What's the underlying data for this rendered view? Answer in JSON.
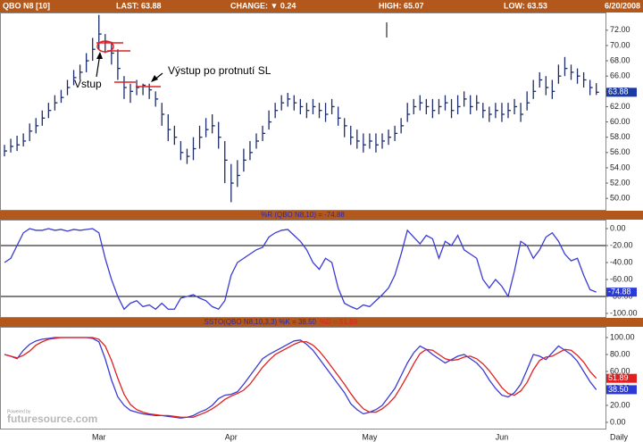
{
  "header": {
    "symbol": "QBO N8 [10]",
    "last": "LAST: 63.88",
    "change": "CHANGE: ▼ 0.24",
    "high": "HIGH: 65.07",
    "low": "LOW: 63.53",
    "date": "6/20/2008"
  },
  "watermark": {
    "small": "Powered by",
    "brand": "futuresource.com"
  },
  "chart_data": [
    {
      "type": "ohlc",
      "color": "#1c2c6c",
      "annotations": [
        "Vstup",
        "Výstup po protnutí SL"
      ],
      "high": [
        57.0,
        57.8,
        58.2,
        58.5,
        59.8,
        60.5,
        61.5,
        62.5,
        63.5,
        64.2,
        65.5,
        66.8,
        67.5,
        69.0,
        71.0,
        74.0,
        71.5,
        70.5,
        69.5,
        66.0,
        65.0,
        65.5,
        65.0,
        65.0,
        64.0,
        62.5,
        61.0,
        59.5,
        57.5,
        56.5,
        58.0,
        59.5,
        60.5,
        61.0,
        60.0,
        57.5,
        54.5,
        55.0,
        56.5,
        57.5,
        58.5,
        59.5,
        61.5,
        62.5,
        63.5,
        63.8,
        63.5,
        63.0,
        62.5,
        63.0,
        62.5,
        62.5,
        63.0,
        62.0,
        60.5,
        59.5,
        59.0,
        58.5,
        58.5,
        58.5,
        58.5,
        59.0,
        59.5,
        60.5,
        62.5,
        63.0,
        63.5,
        63.0,
        63.0,
        63.0,
        63.5,
        63.0,
        63.5,
        64.0,
        63.5,
        63.5,
        62.5,
        62.0,
        62.5,
        62.5,
        62.5,
        63.0,
        62.5,
        64.0,
        65.5,
        66.5,
        66.0,
        65.5,
        67.5,
        68.5,
        67.5,
        67.0,
        66.5,
        65.5,
        65.07
      ],
      "low": [
        55.5,
        56.0,
        56.2,
        56.8,
        57.5,
        58.5,
        59.5,
        60.5,
        61.5,
        62.5,
        63.5,
        64.8,
        65.5,
        66.5,
        68.0,
        69.5,
        69.0,
        67.5,
        65.5,
        63.0,
        62.5,
        63.5,
        63.5,
        63.0,
        62.0,
        59.5,
        57.5,
        57.0,
        55.0,
        54.5,
        55.0,
        56.5,
        58.0,
        58.5,
        56.5,
        52.0,
        49.5,
        51.5,
        53.5,
        55.0,
        56.5,
        57.5,
        59.0,
        60.5,
        61.5,
        62.0,
        61.5,
        61.0,
        60.5,
        61.0,
        60.5,
        60.0,
        61.0,
        59.5,
        58.0,
        57.0,
        56.5,
        56.0,
        56.5,
        56.0,
        56.5,
        57.0,
        57.5,
        58.5,
        60.0,
        61.0,
        61.5,
        61.0,
        60.5,
        61.0,
        61.5,
        60.5,
        61.0,
        62.0,
        61.0,
        61.5,
        60.5,
        60.0,
        60.5,
        60.0,
        60.5,
        61.0,
        60.0,
        61.5,
        63.0,
        64.5,
        63.5,
        63.0,
        65.0,
        66.0,
        65.5,
        65.0,
        64.5,
        63.5,
        63.53
      ],
      "close": [
        56.2,
        56.8,
        57.0,
        57.5,
        58.8,
        59.5,
        60.5,
        61.5,
        62.5,
        63.2,
        64.5,
        65.8,
        66.5,
        68.0,
        69.5,
        71.5,
        70.5,
        69.0,
        67.0,
        64.5,
        64.0,
        64.5,
        64.8,
        64.2,
        63.0,
        61.0,
        59.0,
        58.0,
        56.0,
        55.5,
        56.5,
        58.0,
        59.0,
        59.5,
        58.0,
        55.0,
        52.0,
        53.0,
        55.0,
        56.0,
        57.5,
        58.5,
        60.0,
        61.5,
        62.5,
        63.0,
        62.5,
        62.0,
        61.5,
        62.0,
        61.5,
        61.0,
        62.0,
        60.5,
        59.5,
        58.0,
        57.5,
        57.0,
        57.5,
        57.0,
        57.5,
        58.0,
        58.5,
        59.5,
        61.0,
        62.0,
        62.5,
        62.0,
        61.5,
        62.0,
        62.5,
        61.5,
        62.0,
        63.0,
        62.0,
        62.5,
        61.5,
        61.0,
        61.5,
        61.0,
        61.5,
        62.0,
        61.0,
        62.5,
        64.0,
        65.5,
        64.5,
        64.0,
        66.0,
        67.0,
        66.5,
        66.0,
        65.5,
        64.5,
        63.88
      ],
      "last_label": "63.88",
      "ylim": [
        48.5,
        74.2
      ],
      "yticks": [
        {
          "value": 50,
          "label": "50.00"
        },
        {
          "value": 52,
          "label": "52.00"
        },
        {
          "value": 54,
          "label": "54.00"
        },
        {
          "value": 56,
          "label": "56.00"
        },
        {
          "value": 58,
          "label": "58.00"
        },
        {
          "value": 60,
          "label": "60.00"
        },
        {
          "value": 62,
          "label": "62.00"
        },
        {
          "value": 64,
          "label": "64.00"
        },
        {
          "value": 66,
          "label": "66.00"
        },
        {
          "value": 68,
          "label": "68.00"
        },
        {
          "value": 70,
          "label": "70.00"
        },
        {
          "value": 72,
          "label": "72.00"
        }
      ]
    },
    {
      "type": "line",
      "title": "%R (QBO N8,10) = -74.88",
      "series": [
        {
          "color": "#3a3ad6",
          "values": [
            -40,
            -35,
            -20,
            -5,
            0,
            -2,
            -2,
            0,
            -2,
            -1,
            -3,
            -1,
            -2,
            -1,
            0,
            -5,
            -35,
            -60,
            -80,
            -95,
            -88,
            -85,
            -92,
            -90,
            -95,
            -88,
            -95,
            -95,
            -82,
            -80,
            -78,
            -82,
            -85,
            -92,
            -95,
            -85,
            -55,
            -40,
            -35,
            -30,
            -25,
            -22,
            -10,
            -5,
            -2,
            -1,
            -8,
            -15,
            -25,
            -40,
            -48,
            -35,
            -40,
            -70,
            -88,
            -92,
            -95,
            -90,
            -92,
            -85,
            -78,
            -70,
            -55,
            -30,
            -2,
            -10,
            -18,
            -8,
            -12,
            -35,
            -15,
            -20,
            -8,
            -25,
            -30,
            -35,
            -60,
            -70,
            -60,
            -68,
            -80,
            -50,
            -15,
            -20,
            -35,
            -25,
            -10,
            -5,
            -15,
            -30,
            -38,
            -35,
            -55,
            -72,
            -74.88
          ],
          "last_label": "-74.88"
        }
      ],
      "reference_lines": [
        -20,
        -80
      ],
      "ylim": [
        -104.2,
        9.5
      ],
      "yticks": [
        {
          "value": 0,
          "label": "0.00"
        },
        {
          "value": -20,
          "label": "-20.00"
        },
        {
          "value": -40,
          "label": "-40.00"
        },
        {
          "value": -60,
          "label": "-60.00"
        },
        {
          "value": -80,
          "label": "-80.00"
        },
        {
          "value": -100,
          "label": "-100.00"
        }
      ]
    },
    {
      "type": "line",
      "title": "SSTO(QBO N8,10,3,3) %K = 38.50",
      "title2": "%D = 51.89",
      "categories": [
        null,
        null,
        null,
        null,
        null,
        null,
        null,
        null,
        null,
        null,
        null,
        null,
        null,
        null,
        null,
        "Mar",
        null,
        null,
        null,
        null,
        null,
        null,
        null,
        null,
        null,
        null,
        null,
        null,
        null,
        null,
        null,
        null,
        null,
        null,
        null,
        null,
        "Apr",
        null,
        null,
        null,
        null,
        null,
        null,
        null,
        null,
        null,
        null,
        null,
        null,
        null,
        null,
        null,
        null,
        null,
        null,
        null,
        null,
        null,
        "May",
        null,
        null,
        null,
        null,
        null,
        null,
        null,
        null,
        null,
        null,
        null,
        null,
        null,
        null,
        null,
        null,
        null,
        null,
        null,
        null,
        "Jun",
        null,
        null,
        null,
        null,
        null,
        null,
        null,
        null,
        null,
        null,
        null,
        null,
        null,
        null,
        null
      ],
      "x_label": "Daily",
      "series": [
        {
          "color": "#3a3ad6",
          "values": [
            80,
            78,
            75,
            85,
            92,
            96,
            98,
            99,
            100,
            100,
            100,
            100,
            100,
            100,
            99,
            95,
            75,
            50,
            30,
            20,
            14,
            12,
            10,
            9,
            8,
            8,
            7,
            6,
            5,
            6,
            8,
            12,
            15,
            20,
            28,
            32,
            33,
            36,
            45,
            55,
            65,
            75,
            80,
            84,
            88,
            92,
            96,
            97,
            92,
            85,
            75,
            65,
            55,
            45,
            35,
            22,
            15,
            10,
            12,
            15,
            20,
            30,
            40,
            55,
            70,
            82,
            90,
            86,
            80,
            75,
            70,
            74,
            78,
            80,
            75,
            70,
            62,
            50,
            40,
            32,
            30,
            35,
            45,
            62,
            80,
            78,
            74,
            82,
            90,
            85,
            80,
            72,
            60,
            48,
            38.5
          ],
          "last_label": "38.50"
        },
        {
          "color": "#e02020",
          "values": [
            80,
            78,
            76,
            79,
            84,
            91,
            95,
            98,
            99,
            100,
            100,
            100,
            100,
            100,
            100,
            98,
            90,
            73,
            52,
            33,
            21,
            15,
            12,
            10,
            9,
            8,
            8,
            7,
            6,
            6,
            6,
            9,
            12,
            16,
            21,
            27,
            31,
            34,
            38,
            45,
            55,
            65,
            73,
            80,
            84,
            88,
            92,
            95,
            95,
            91,
            84,
            75,
            65,
            55,
            45,
            34,
            24,
            16,
            12,
            12,
            16,
            22,
            30,
            42,
            55,
            69,
            81,
            86,
            85,
            80,
            75,
            73,
            74,
            77,
            78,
            75,
            69,
            61,
            51,
            41,
            34,
            32,
            37,
            47,
            62,
            73,
            77,
            78,
            82,
            86,
            85,
            79,
            71,
            60,
            51.89
          ],
          "last_label": "51.89"
        }
      ],
      "ylim": [
        -7.4,
        111.6
      ],
      "yticks": [
        {
          "value": 0,
          "label": "0.00"
        },
        {
          "value": 20,
          "label": "20.00"
        },
        {
          "value": 40,
          "label": "40.00"
        },
        {
          "value": 60,
          "label": "60.00"
        },
        {
          "value": 80,
          "label": "80.00"
        },
        {
          "value": 100,
          "label": "100.00"
        }
      ]
    }
  ]
}
